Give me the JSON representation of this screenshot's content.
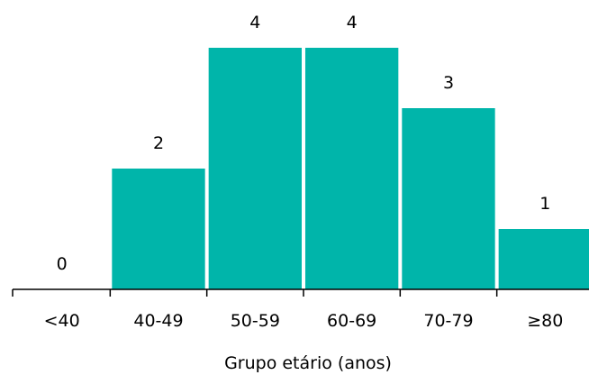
{
  "chart_data": {
    "type": "bar",
    "categories": [
      "<40",
      "40-49",
      "50-59",
      "60-69",
      "70-79",
      "≥80"
    ],
    "values": [
      0,
      2,
      4,
      4,
      3,
      1
    ],
    "xlabel": "Grupo etário (anos)",
    "ylabel": "",
    "ylim": [
      0,
      4
    ],
    "grid": false,
    "data_labels": true,
    "bar_color": "#00b5aa",
    "axis_color": "#000000"
  }
}
